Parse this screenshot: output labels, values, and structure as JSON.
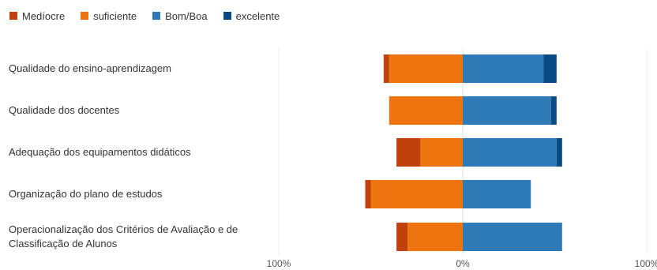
{
  "chart_data": {
    "type": "bar",
    "orientation": "horizontal-diverging",
    "legend_position": "top-left",
    "series": [
      {
        "name": "Medíocre",
        "color": "#c0410c",
        "side": "negative",
        "values": [
          3,
          0,
          13,
          3,
          6
        ]
      },
      {
        "name": "suficiente",
        "color": "#ee7410",
        "side": "negative",
        "values": [
          40,
          40,
          23,
          50,
          30
        ]
      },
      {
        "name": "Bom/Boa",
        "color": "#2e7ab6",
        "side": "positive",
        "values": [
          44,
          48,
          51,
          37,
          54
        ]
      },
      {
        "name": "excelente",
        "color": "#0a4a83",
        "side": "positive",
        "values": [
          7,
          3,
          3,
          0,
          0
        ]
      }
    ],
    "categories": [
      "Qualidade do ensino-aprendizagem",
      "Qualidade dos docentes",
      "Adequação dos equipamentos didáticos",
      "Organização do plano de estudos",
      "Operacionalização dos Critérios de Avaliação e de Classificação de Alunos"
    ],
    "xlim": [
      -100,
      100
    ],
    "x_tick_labels": [
      "100%",
      "0%",
      "100%"
    ],
    "grid": false
  }
}
